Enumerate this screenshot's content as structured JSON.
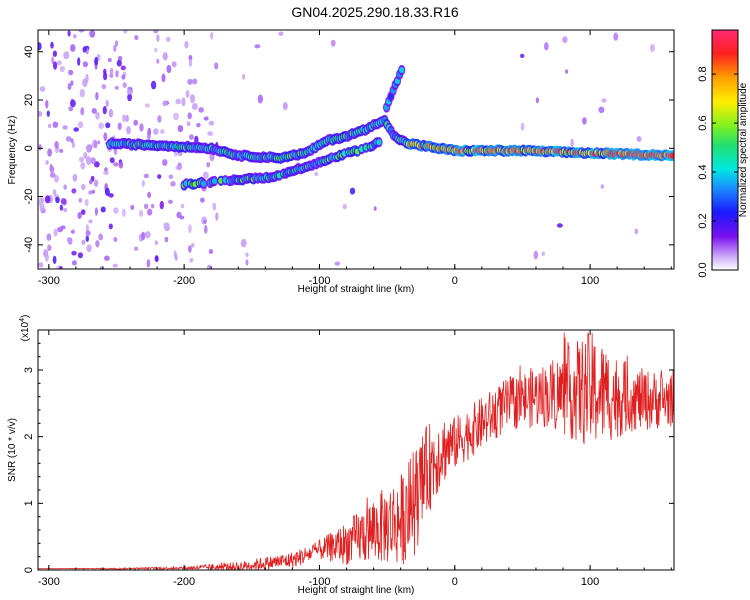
{
  "title": "GN04.2025.290.18.33.R16",
  "colors": {
    "snr_line": "#e02020",
    "axis": "#000000"
  },
  "chart_data": [
    {
      "type": "heatmap",
      "title": "GN04.2025.290.18.33.R16",
      "xlabel": "Height of straight line (km)",
      "ylabel": "Frequency (Hz)",
      "xlim": [
        -308,
        162
      ],
      "ylim": [
        -50,
        49
      ],
      "xticks": [
        -300,
        -200,
        -100,
        0,
        100
      ],
      "yticks": [
        -40,
        -20,
        0,
        20,
        40
      ],
      "colorbar": {
        "label": "Normalized spectral amplitude",
        "range": [
          0.0,
          0.98
        ],
        "ticks": [
          "0.0",
          "0.2",
          "0.4",
          "0.6",
          "0.8"
        ]
      },
      "ridges": [
        {
          "name": "main",
          "points": [
            [
              -255,
              2
            ],
            [
              -210,
              1
            ],
            [
              -180,
              0
            ],
            [
              -160,
              -3
            ],
            [
              -130,
              -4
            ],
            [
              -110,
              -2
            ],
            [
              -95,
              3
            ],
            [
              -80,
              5
            ],
            [
              -65,
              8
            ],
            [
              -52,
              12
            ],
            [
              -45,
              5
            ],
            [
              -35,
              2
            ],
            [
              0,
              -1
            ],
            [
              50,
              -1
            ],
            [
              100,
              -2
            ],
            [
              162,
              -3
            ]
          ]
        },
        {
          "name": "lower",
          "points": [
            [
              -200,
              -15
            ],
            [
              -160,
              -13
            ],
            [
              -135,
              -12
            ],
            [
              -95,
              -5
            ],
            [
              -80,
              -2
            ],
            [
              -65,
              0
            ],
            [
              -55,
              3
            ]
          ]
        },
        {
          "name": "upper",
          "points": [
            [
              -52,
              15
            ],
            [
              -47,
              22
            ],
            [
              -38,
              34
            ]
          ]
        }
      ]
    },
    {
      "type": "line",
      "xlabel": "Height of straight line (km)",
      "ylabel": "SNR (10 * v/v)",
      "y_multiplier": "(x10^4)",
      "xlim": [
        -308,
        162
      ],
      "ylim": [
        0,
        3.6
      ],
      "xticks": [
        -300,
        -200,
        -100,
        0,
        100
      ],
      "yticks": [
        0,
        1,
        2,
        3
      ],
      "envelope": [
        [
          -308,
          0.02
        ],
        [
          -250,
          0.02
        ],
        [
          -200,
          0.03
        ],
        [
          -160,
          0.05
        ],
        [
          -140,
          0.1
        ],
        [
          -120,
          0.15
        ],
        [
          -100,
          0.3
        ],
        [
          -80,
          0.4
        ],
        [
          -60,
          0.6
        ],
        [
          -40,
          0.75
        ],
        [
          -30,
          1.0
        ],
        [
          -20,
          1.5
        ],
        [
          -10,
          1.8
        ],
        [
          0,
          1.9
        ],
        [
          20,
          2.2
        ],
        [
          40,
          2.5
        ],
        [
          60,
          2.6
        ],
        [
          80,
          2.65
        ],
        [
          100,
          2.7
        ],
        [
          120,
          2.6
        ],
        [
          140,
          2.55
        ],
        [
          162,
          2.55
        ]
      ],
      "noise": [
        [
          -308,
          0.0
        ],
        [
          -200,
          0.02
        ],
        [
          -140,
          0.1
        ],
        [
          -100,
          0.15
        ],
        [
          -60,
          0.5
        ],
        [
          -30,
          0.8
        ],
        [
          -20,
          0.7
        ],
        [
          0,
          0.4
        ],
        [
          40,
          0.4
        ],
        [
          70,
          0.5
        ],
        [
          100,
          0.9
        ],
        [
          130,
          0.5
        ],
        [
          162,
          0.4
        ]
      ]
    }
  ],
  "labels": {
    "top_xlabel": "Height of straight line (km)",
    "top_ylabel": "Frequency (Hz)",
    "bottom_xlabel": "Height of straight line (km)",
    "bottom_ylabel": "SNR (10 * v/v)",
    "multiplier": "(x10",
    "multiplier_exp": "4",
    "multiplier_close": ")",
    "colorbar_label": "Normalized spectral amplitude"
  }
}
